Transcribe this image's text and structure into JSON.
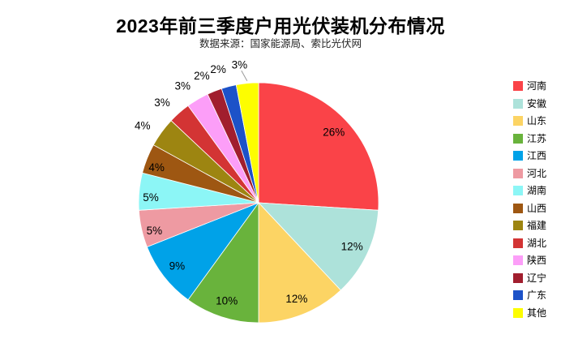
{
  "header": {
    "title": "2023年前三季度户用光伏装机分布情况",
    "subtitle": "数据来源：国家能源局、索比光伏网"
  },
  "chart_data": {
    "type": "pie",
    "title": "2023年前三季度户用光伏装机分布情况",
    "subtitle": "数据来源：国家能源局、索比光伏网",
    "unit": "percent",
    "start_angle_deg": 0,
    "direction": "clockwise",
    "legend_position": "right",
    "categories": [
      "河南",
      "安徽",
      "山东",
      "江苏",
      "江西",
      "河北",
      "湖南",
      "山西",
      "福建",
      "湖北",
      "陕西",
      "辽宁",
      "广东",
      "其他"
    ],
    "values": [
      26,
      12,
      12,
      10,
      9,
      5,
      5,
      4,
      4,
      3,
      3,
      2,
      2,
      3
    ],
    "slices": [
      {
        "name": "河南",
        "value": 26,
        "label": "26%",
        "color": "#fa4348",
        "label_placement": "inside",
        "leader_line": false
      },
      {
        "name": "安徽",
        "value": 12,
        "label": "12%",
        "color": "#ade2da",
        "label_placement": "inside",
        "leader_line": false
      },
      {
        "name": "山东",
        "value": 12,
        "label": "12%",
        "color": "#fcd464",
        "label_placement": "inside",
        "leader_line": false
      },
      {
        "name": "江苏",
        "value": 10,
        "label": "10%",
        "color": "#69b33c",
        "label_placement": "inside",
        "leader_line": false
      },
      {
        "name": "江西",
        "value": 9,
        "label": "9%",
        "color": "#00a2e8",
        "label_placement": "inside",
        "leader_line": false
      },
      {
        "name": "河北",
        "value": 5,
        "label": "5%",
        "color": "#ee9aa2",
        "label_placement": "inside-edge",
        "leader_line": false
      },
      {
        "name": "湖南",
        "value": 5,
        "label": "5%",
        "color": "#8cf6f6",
        "label_placement": "inside-edge",
        "leader_line": false
      },
      {
        "name": "山西",
        "value": 4,
        "label": "4%",
        "color": "#9e5712",
        "label_placement": "inside-edge",
        "leader_line": false
      },
      {
        "name": "福建",
        "value": 4,
        "label": "4%",
        "color": "#9d8511",
        "label_placement": "outside",
        "leader_line": false
      },
      {
        "name": "湖北",
        "value": 3,
        "label": "3%",
        "color": "#d33434",
        "label_placement": "outside",
        "leader_line": false
      },
      {
        "name": "陕西",
        "value": 3,
        "label": "3%",
        "color": "#fc9ef8",
        "label_placement": "outside",
        "leader_line": false
      },
      {
        "name": "辽宁",
        "value": 2,
        "label": "2%",
        "color": "#a11e2e",
        "label_placement": "outside",
        "leader_line": false
      },
      {
        "name": "广东",
        "value": 2,
        "label": "2%",
        "color": "#1c52c8",
        "label_placement": "outside",
        "leader_line": false
      },
      {
        "name": "其他",
        "value": 3,
        "label": "3%",
        "color": "#fdfd00",
        "label_placement": "outside",
        "leader_line": true
      }
    ]
  },
  "style": {
    "slice_border_color": "#ffffff",
    "leader_line_color": "#9a9a9a",
    "label_color": "#000000"
  }
}
